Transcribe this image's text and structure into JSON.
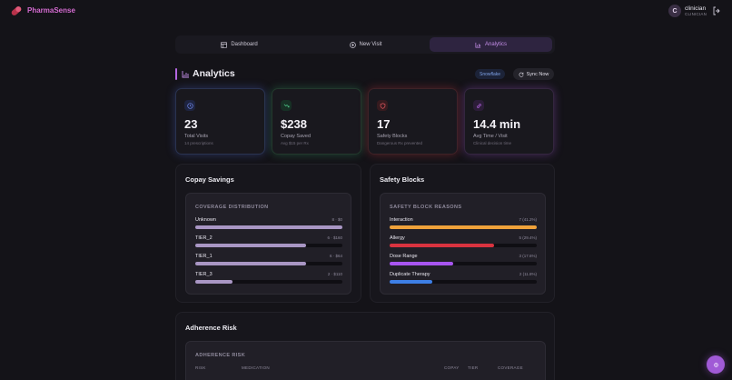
{
  "app": {
    "brand": "PharmaSense"
  },
  "user": {
    "initial": "C",
    "name": "clinician",
    "role": "CLINICIAN"
  },
  "nav": {
    "tabs": [
      {
        "label": "Dashboard",
        "icon": "dashboard-icon"
      },
      {
        "label": "New Visit",
        "icon": "plus-circle-icon"
      },
      {
        "label": "Analytics",
        "icon": "bar-chart-icon",
        "active": true
      }
    ]
  },
  "header": {
    "title": "Analytics",
    "badge": "Snowflake",
    "sync_label": "Sync Now"
  },
  "kpis": [
    {
      "value": "23",
      "label": "Total Visits",
      "sub": "14 prescriptions",
      "icon": "clock-icon",
      "color": "#6f86e8"
    },
    {
      "value": "$238",
      "label": "Copay Saved",
      "sub": "Avg $15 per Rx",
      "icon": "trend-down-icon",
      "color": "#4fc98a"
    },
    {
      "value": "17",
      "label": "Safety Blocks",
      "sub": "Dangerous Rx prevented",
      "icon": "shield-icon",
      "color": "#e0555e"
    },
    {
      "value": "14.4 min",
      "label": "Avg Time / Visit",
      "sub": "Clinical decision time",
      "icon": "link-icon",
      "color": "#b766e6"
    }
  ],
  "copay": {
    "title": "Copay Savings",
    "inner_title": "COVERAGE DISTRIBUTION",
    "rows": [
      {
        "name": "Unknown",
        "count": "8 · $0",
        "fraction": 1.0,
        "color": "#a996c4"
      },
      {
        "name": "TIER_2",
        "count": "6 · $160",
        "fraction": 0.75,
        "color": "#a996c4"
      },
      {
        "name": "TIER_1",
        "count": "6 · $64",
        "fraction": 0.75,
        "color": "#a996c4"
      },
      {
        "name": "TIER_3",
        "count": "2 · $110",
        "fraction": 0.25,
        "color": "#a996c4"
      }
    ]
  },
  "safety": {
    "title": "Safety Blocks",
    "inner_title": "SAFETY BLOCK REASONS",
    "rows": [
      {
        "name": "Interaction",
        "count": "7 (41.2%)",
        "fraction": 1.0,
        "color": "#f0a23a"
      },
      {
        "name": "Allergy",
        "count": "5 (29.4%)",
        "fraction": 0.71,
        "color": "#d9333f"
      },
      {
        "name": "Dose Range",
        "count": "3 (17.6%)",
        "fraction": 0.43,
        "color": "#a855f0"
      },
      {
        "name": "Duplicate Therapy",
        "count": "2 (11.8%)",
        "fraction": 0.29,
        "color": "#3d7fe6"
      }
    ]
  },
  "adherence": {
    "title": "Adherence Risk",
    "inner_title": "ADHERENCE RISK",
    "columns": [
      "RISK",
      "MEDICATION",
      "COPAY",
      "TIER",
      "COVERAGE"
    ]
  }
}
